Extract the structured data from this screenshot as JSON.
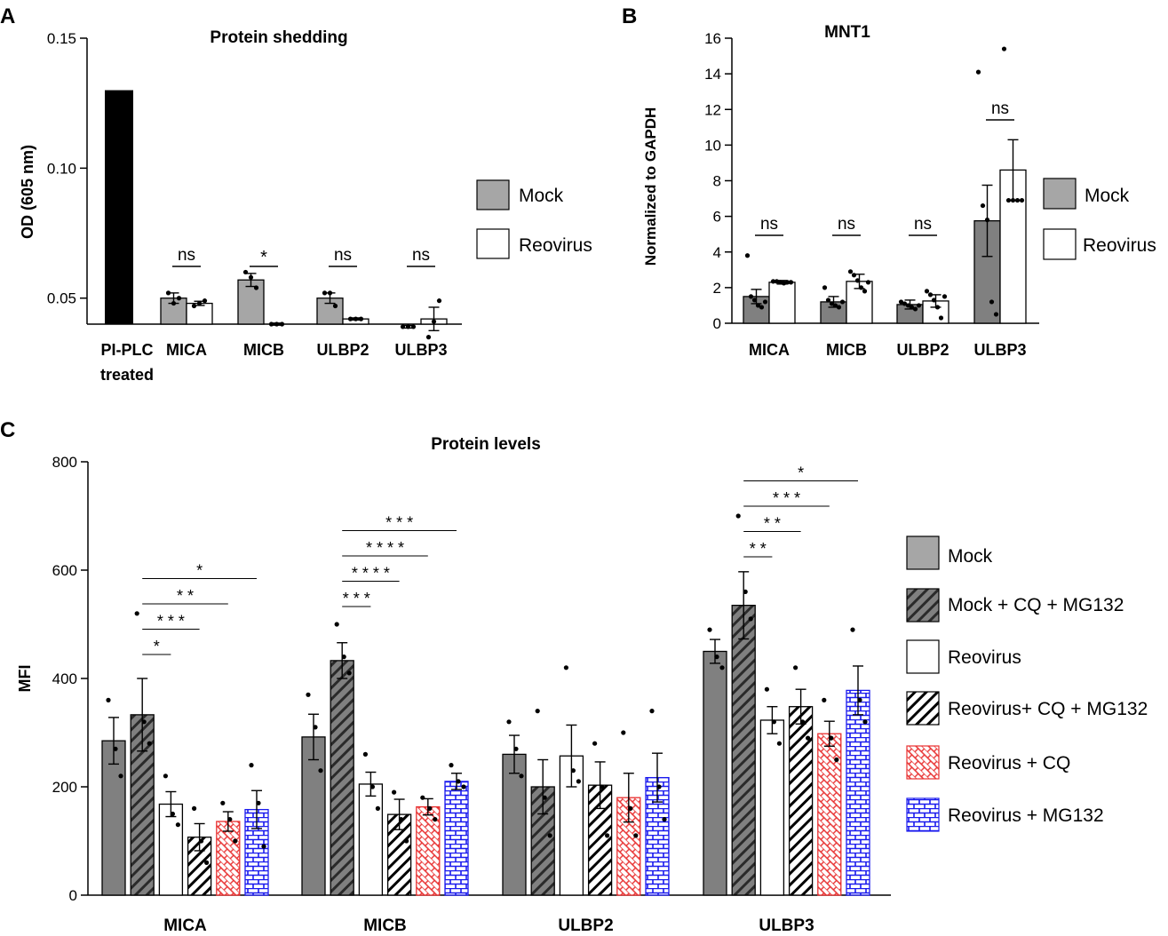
{
  "panels": {
    "A": {
      "letter": "A"
    },
    "B": {
      "letter": "B"
    },
    "C": {
      "letter": "C"
    }
  },
  "legendAB": {
    "mock": "Mock",
    "reovirus": "Reovirus"
  },
  "legendC": [
    "Mock",
    "Mock + CQ + MG132",
    "Reovirus",
    "Reovirus+ CQ + MG132",
    "Reovirus + CQ",
    "Reovirus + MG132"
  ],
  "colors": {
    "mock_gray": "#a6a6a6",
    "dark_gray": "#808080",
    "black": "#000000",
    "red": "#e83030",
    "blue": "#1a1aee"
  },
  "chart_data": [
    {
      "id": "A",
      "type": "bar",
      "title": "Protein shedding",
      "ylabel": "OD (605 nm)",
      "ylim": [
        0.04,
        0.15
      ],
      "yticks": [
        "0.05",
        "0.10",
        "0.15"
      ],
      "control": {
        "label_line1": "PI-PLC",
        "label_line2": "treated",
        "value": 0.13
      },
      "categories": [
        "MICA",
        "MICB",
        "ULBP2",
        "ULBP3"
      ],
      "series": [
        {
          "name": "Mock",
          "values": [
            0.05,
            0.057,
            0.05,
            0.039
          ],
          "errors": [
            0.002,
            0.0025,
            0.002,
            0.0005
          ]
        },
        {
          "name": "Reovirus",
          "values": [
            0.048,
            0.04,
            0.042,
            0.042
          ],
          "errors": [
            0.0008,
            0.0004,
            0.0004,
            0.0045
          ]
        }
      ],
      "points": [
        [
          [
            0.052,
            0.048,
            0.05
          ],
          [
            0.047,
            0.048,
            0.049
          ]
        ],
        [
          [
            0.06,
            0.058,
            0.054
          ],
          [
            0.04,
            0.04,
            0.04
          ]
        ],
        [
          [
            0.052,
            0.052,
            0.047
          ],
          [
            0.042,
            0.042,
            0.042
          ]
        ],
        [
          [
            0.039,
            0.039,
            0.039
          ],
          [
            0.035,
            0.041,
            0.049
          ]
        ]
      ],
      "significance": [
        "ns",
        "*",
        "ns",
        "ns"
      ]
    },
    {
      "id": "B",
      "type": "bar",
      "title": "MNT1",
      "ylabel": "Normalized to GAPDH",
      "ylim": [
        0,
        16
      ],
      "yticks": [
        "0",
        "2",
        "4",
        "6",
        "8",
        "10",
        "12",
        "14",
        "16"
      ],
      "categories": [
        "MICA",
        "MICB",
        "ULBP2",
        "ULBP3"
      ],
      "series": [
        {
          "name": "Mock",
          "values": [
            1.5,
            1.2,
            1.05,
            5.75
          ],
          "errors": [
            0.4,
            0.3,
            0.25,
            2.0
          ]
        },
        {
          "name": "Reovirus",
          "values": [
            2.3,
            2.35,
            1.25,
            8.6
          ],
          "errors": [
            0.1,
            0.4,
            0.35,
            1.7
          ]
        }
      ],
      "points": [
        [
          [
            3.8,
            1.5,
            1.3,
            1.0,
            0.9,
            1.2
          ],
          [
            2.35,
            2.35,
            2.3,
            2.25,
            2.3,
            2.3
          ]
        ],
        [
          [
            2.0,
            1.3,
            1.1,
            1.0,
            0.9,
            1.2
          ],
          [
            2.9,
            2.7,
            2.4,
            2.0,
            1.8,
            2.3
          ]
        ],
        [
          [
            1.2,
            1.1,
            1.0,
            0.9,
            0.8,
            1.0
          ],
          [
            1.8,
            1.6,
            1.3,
            0.9,
            0.3,
            1.5
          ]
        ],
        [
          [
            14.1,
            6.6,
            5.8,
            1.2,
            0.5
          ],
          [
            15.4,
            6.9,
            6.9,
            6.9,
            6.9
          ]
        ]
      ],
      "significance": [
        "ns",
        "ns",
        "ns",
        "ns"
      ]
    },
    {
      "id": "C",
      "type": "bar",
      "title": "Protein levels",
      "ylabel": "MFI",
      "ylim": [
        0,
        800
      ],
      "yticks": [
        "0",
        "200",
        "400",
        "600",
        "800"
      ],
      "categories": [
        "MICA",
        "MICB",
        "ULBP2",
        "ULBP3"
      ],
      "series": [
        {
          "name": "Mock",
          "values": [
            285,
            292,
            260,
            450
          ],
          "errors": [
            43,
            42,
            35,
            22
          ]
        },
        {
          "name": "Mock + CQ + MG132",
          "values": [
            333,
            433,
            200,
            535
          ],
          "errors": [
            67,
            33,
            50,
            62
          ]
        },
        {
          "name": "Reovirus",
          "values": [
            168,
            205,
            257,
            323
          ],
          "errors": [
            23,
            22,
            57,
            25
          ]
        },
        {
          "name": "Reovirus+ CQ + MG132",
          "values": [
            107,
            149,
            203,
            348
          ],
          "errors": [
            25,
            28,
            43,
            32
          ]
        },
        {
          "name": "Reovirus + CQ",
          "values": [
            136,
            163,
            180,
            298
          ],
          "errors": [
            18,
            15,
            45,
            23
          ]
        },
        {
          "name": "Reovirus + MG132",
          "values": [
            158,
            210,
            217,
            378
          ],
          "errors": [
            35,
            15,
            45,
            45
          ]
        }
      ],
      "points": [
        [
          [
            360,
            270,
            220
          ],
          [
            520,
            320,
            280
          ],
          [
            220,
            150,
            130
          ],
          [
            160,
            100,
            60
          ],
          [
            170,
            140,
            100
          ],
          [
            240,
            170,
            90
          ]
        ],
        [
          [
            370,
            310,
            230
          ],
          [
            500,
            440,
            410
          ],
          [
            260,
            200,
            160
          ],
          [
            190,
            140,
            100
          ],
          [
            180,
            160,
            140
          ],
          [
            240,
            210,
            200
          ]
        ],
        [
          [
            320,
            270,
            220
          ],
          [
            340,
            180,
            110
          ],
          [
            420,
            230,
            210
          ],
          [
            280,
            200,
            110
          ],
          [
            300,
            160,
            110
          ],
          [
            340,
            200,
            140
          ]
        ],
        [
          [
            490,
            440,
            420
          ],
          [
            700,
            560,
            510
          ],
          [
            380,
            320,
            280
          ],
          [
            420,
            320,
            290
          ],
          [
            360,
            290,
            250
          ],
          [
            490,
            360,
            320
          ]
        ]
      ],
      "significance": [
        {
          "group": 0,
          "from": 1,
          "to": 2,
          "label": "*"
        },
        {
          "group": 0,
          "from": 1,
          "to": 3,
          "label": "* * *"
        },
        {
          "group": 0,
          "from": 1,
          "to": 4,
          "label": "* *"
        },
        {
          "group": 0,
          "from": 1,
          "to": 5,
          "label": "*"
        },
        {
          "group": 1,
          "from": 1,
          "to": 2,
          "label": "* * *"
        },
        {
          "group": 1,
          "from": 1,
          "to": 3,
          "label": "* * * *"
        },
        {
          "group": 1,
          "from": 1,
          "to": 4,
          "label": "* * * *"
        },
        {
          "group": 1,
          "from": 1,
          "to": 5,
          "label": "* * *"
        },
        {
          "group": 3,
          "from": 1,
          "to": 2,
          "label": "* *"
        },
        {
          "group": 3,
          "from": 1,
          "to": 3,
          "label": "* *"
        },
        {
          "group": 3,
          "from": 1,
          "to": 4,
          "label": "* * *"
        },
        {
          "group": 3,
          "from": 1,
          "to": 5,
          "label": "*"
        }
      ]
    }
  ]
}
